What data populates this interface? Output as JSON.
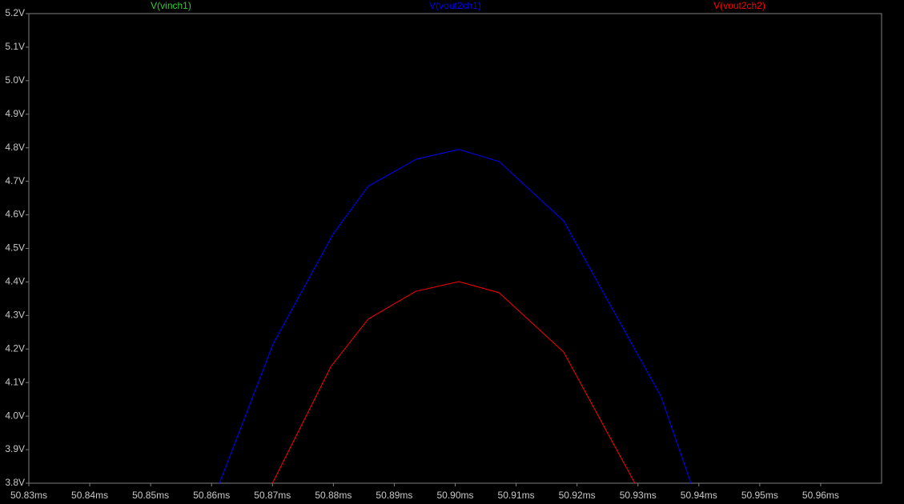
{
  "chart_data": {
    "type": "line",
    "xlim": [
      50.83,
      50.97
    ],
    "xticks": [
      {
        "value": 50.83,
        "label": "50.83ms"
      },
      {
        "value": 50.84,
        "label": "50.84ms"
      },
      {
        "value": 50.85,
        "label": "50.85ms"
      },
      {
        "value": 50.86,
        "label": "50.86ms"
      },
      {
        "value": 50.87,
        "label": "50.87ms"
      },
      {
        "value": 50.88,
        "label": "50.88ms"
      },
      {
        "value": 50.89,
        "label": "50.89ms"
      },
      {
        "value": 50.9,
        "label": "50.90ms"
      },
      {
        "value": 50.91,
        "label": "50.91ms"
      },
      {
        "value": 50.92,
        "label": "50.92ms"
      },
      {
        "value": 50.93,
        "label": "50.93ms"
      },
      {
        "value": 50.94,
        "label": "50.94ms"
      },
      {
        "value": 50.95,
        "label": "50.95ms"
      },
      {
        "value": 50.96,
        "label": "50.96ms"
      }
    ],
    "ylim": [
      3.8,
      5.2
    ],
    "yticks": [
      {
        "value": 3.8,
        "label": "3.8V"
      },
      {
        "value": 3.9,
        "label": "3.9V"
      },
      {
        "value": 4.0,
        "label": "4.0V"
      },
      {
        "value": 4.1,
        "label": "4.1V"
      },
      {
        "value": 4.2,
        "label": "4.2V"
      },
      {
        "value": 4.3,
        "label": "4.3V"
      },
      {
        "value": 4.4,
        "label": "4.4V"
      },
      {
        "value": 4.5,
        "label": "4.5V"
      },
      {
        "value": 4.6,
        "label": "4.6V"
      },
      {
        "value": 4.7,
        "label": "4.7V"
      },
      {
        "value": 4.8,
        "label": "4.8V"
      },
      {
        "value": 4.9,
        "label": "4.9V"
      },
      {
        "value": 5.0,
        "label": "5.0V"
      },
      {
        "value": 5.1,
        "label": "5.1V"
      },
      {
        "value": 5.2,
        "label": "5.2V"
      }
    ],
    "series": [
      {
        "name": "V(vinch1)",
        "color": "#33cc33",
        "x": [],
        "values": []
      },
      {
        "name": "V(vout2ch1)",
        "color": "#0000ff",
        "x": [
          50.8613,
          50.8701,
          50.88,
          50.8857,
          50.8936,
          50.9006,
          50.9072,
          50.9178,
          50.9338,
          50.9387
        ],
        "values": [
          3.8,
          4.215,
          4.544,
          4.685,
          4.766,
          4.795,
          4.759,
          4.582,
          4.058,
          3.8
        ]
      },
      {
        "name": "V(vout2ch2)",
        "color": "#ff0000",
        "x": [
          50.87,
          50.8796,
          50.8857,
          50.8935,
          50.9006,
          50.9072,
          50.9178,
          50.9295
        ],
        "values": [
          3.8,
          4.148,
          4.289,
          4.372,
          4.401,
          4.368,
          4.191,
          3.8
        ]
      }
    ]
  }
}
